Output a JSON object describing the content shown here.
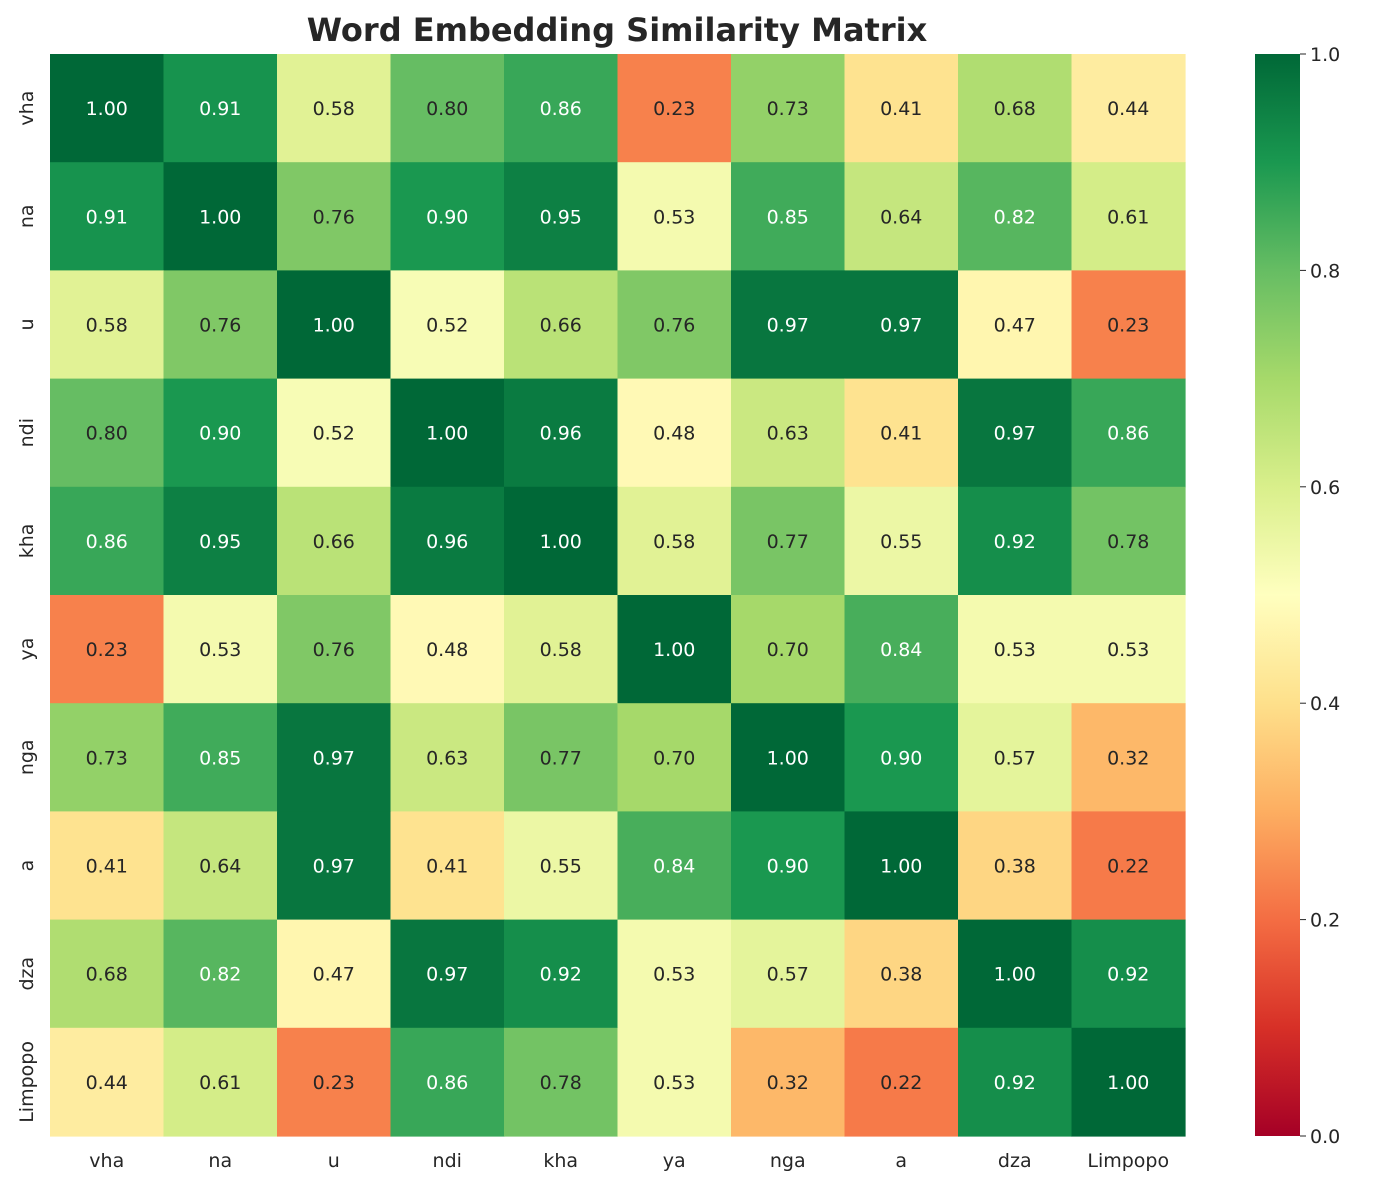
{
  "chart_data": {
    "type": "heatmap",
    "title": "Word Embedding Similarity Matrix",
    "x_labels": [
      "vha",
      "na",
      "u",
      "ndi",
      "kha",
      "ya",
      "nga",
      "a",
      "dza",
      "Limpopo"
    ],
    "y_labels": [
      "vha",
      "na",
      "u",
      "ndi",
      "kha",
      "ya",
      "nga",
      "a",
      "dza",
      "Limpopo"
    ],
    "values": [
      [
        1.0,
        0.91,
        0.58,
        0.8,
        0.86,
        0.23,
        0.73,
        0.41,
        0.68,
        0.44
      ],
      [
        0.91,
        1.0,
        0.76,
        0.9,
        0.95,
        0.53,
        0.85,
        0.64,
        0.82,
        0.61
      ],
      [
        0.58,
        0.76,
        1.0,
        0.52,
        0.66,
        0.76,
        0.97,
        0.97,
        0.47,
        0.23
      ],
      [
        0.8,
        0.9,
        0.52,
        1.0,
        0.96,
        0.48,
        0.63,
        0.41,
        0.97,
        0.86
      ],
      [
        0.86,
        0.95,
        0.66,
        0.96,
        1.0,
        0.58,
        0.77,
        0.55,
        0.92,
        0.78
      ],
      [
        0.23,
        0.53,
        0.76,
        0.48,
        0.58,
        1.0,
        0.7,
        0.84,
        0.53,
        0.53
      ],
      [
        0.73,
        0.85,
        0.97,
        0.63,
        0.77,
        0.7,
        1.0,
        0.9,
        0.57,
        0.32
      ],
      [
        0.41,
        0.64,
        0.97,
        0.41,
        0.55,
        0.84,
        0.9,
        1.0,
        0.38,
        0.22
      ],
      [
        0.68,
        0.82,
        0.47,
        0.97,
        0.92,
        0.53,
        0.57,
        0.38,
        1.0,
        0.92
      ],
      [
        0.44,
        0.61,
        0.23,
        0.86,
        0.78,
        0.53,
        0.32,
        0.22,
        0.92,
        1.0
      ]
    ],
    "value_format": "2 decimals",
    "colormap": "RdYlGn",
    "color_range": [
      0.0,
      1.0
    ],
    "colorbar_ticks": [
      "0.0",
      "0.2",
      "0.4",
      "0.6",
      "0.8",
      "1.0"
    ],
    "grid": false
  }
}
